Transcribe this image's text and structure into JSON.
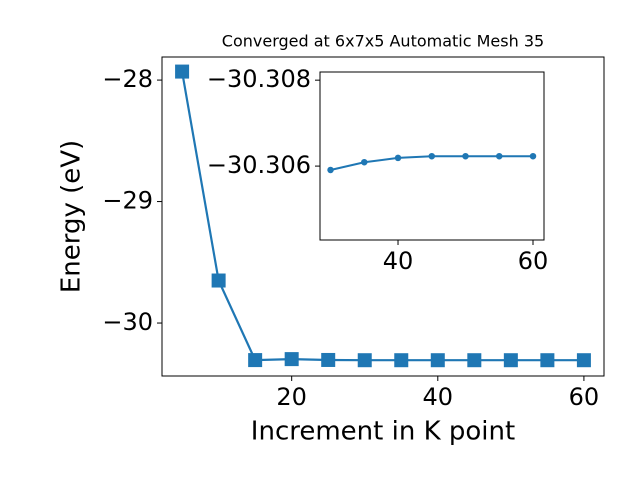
{
  "chart_data": [
    {
      "type": "line",
      "title": "Converged at 6x7x5 Automatic Mesh 35",
      "x_label": "Increment in K point",
      "y_label": "Energy (eV)",
      "x": [
        5,
        10,
        15,
        20,
        25,
        30,
        35,
        40,
        45,
        50,
        55,
        60
      ],
      "series": [
        {
          "color": "#1f77b4",
          "marker": "square",
          "values": [
            -27.93,
            -29.65,
            -30.305,
            -30.297,
            -30.304,
            -30.306,
            -30.306,
            -30.306,
            -30.306,
            -30.306,
            -30.306,
            -30.306
          ]
        }
      ],
      "xlim": [
        2.25,
        62.75
      ],
      "ylim": [
        -30.436,
        -27.81
      ],
      "xticks": [
        20,
        40,
        60
      ],
      "yticks": [
        {
          "value": -28,
          "label": "−28"
        },
        {
          "value": -29,
          "label": "−29"
        },
        {
          "value": -30,
          "label": "−30"
        }
      ]
    },
    {
      "type": "line",
      "x": [
        30,
        35,
        40,
        45,
        50,
        55,
        60
      ],
      "series": [
        {
          "color": "#1f77b4",
          "marker": "circle",
          "values": [
            -30.30591,
            -30.30609,
            -30.30619,
            -30.30623,
            -30.30623,
            -30.30623,
            -30.30623
          ]
        }
      ],
      "xlim": [
        28.44,
        61.63
      ],
      "ylim": [
        -30.30428,
        -30.30819
      ],
      "xticks": [
        40,
        60
      ],
      "yticks": [
        {
          "value": -30.308,
          "label": "−30.308"
        },
        {
          "value": -30.306,
          "label": "−30.306"
        }
      ]
    }
  ]
}
